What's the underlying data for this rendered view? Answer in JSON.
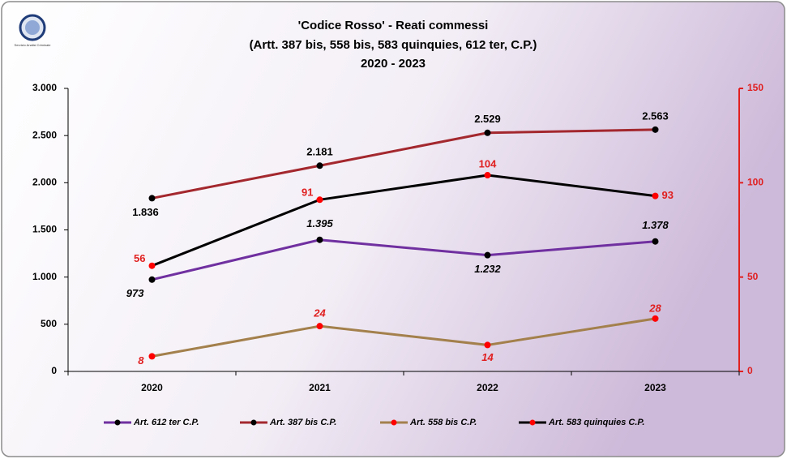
{
  "chart_data": {
    "type": "line",
    "title": "'Codice Rosso' - Reati commessi",
    "subtitle": [
      "(Artt. 387 bis, 558 bis, 583 quinquies, 612 ter, C.P.)",
      "2020 - 2023"
    ],
    "logo_text": "Servizio Analisi Criminale",
    "categories": [
      "2020",
      "2021",
      "2022",
      "2023"
    ],
    "ylim": [
      0,
      3000
    ],
    "yticks": [
      0,
      500,
      {
        "value": 1000,
        "label": "1.000"
      },
      {
        "value": 1500,
        "label": "1.500"
      },
      {
        "value": 2000,
        "label": "2.000"
      },
      {
        "value": 2500,
        "label": "2.500"
      },
      {
        "value": 3000,
        "label": "3.000"
      }
    ],
    "y2lim": [
      0,
      150
    ],
    "y2ticks": [
      0,
      50,
      100,
      150
    ],
    "y2_color": "#e02020",
    "series": [
      {
        "name": "Art. 612 ter C.P.",
        "color": "#7030a0",
        "marker_color": "#000000",
        "label_color": "#000000",
        "label_italic": true,
        "values": [
          973,
          1395,
          1232,
          1378
        ],
        "value_labels": [
          "973",
          "1.395",
          "1.232",
          "1.378"
        ]
      },
      {
        "name": "Art. 387 bis C.P.",
        "color": "#a3282e",
        "marker_color": "#000000",
        "label_color": "#000000",
        "label_italic": false,
        "values": [
          1836,
          2181,
          2529,
          2563
        ],
        "value_labels": [
          "1.836",
          "2.181",
          "2.529",
          "2.563"
        ]
      },
      {
        "name": "Art. 558 bis C.P.",
        "color": "#a3804c",
        "marker_color": "#ff0000",
        "label_color": "#e02020",
        "label_italic": true,
        "axis": "y2",
        "values": [
          8,
          24,
          14,
          28
        ]
      },
      {
        "name": "Art. 583 quinquies C.P.",
        "color": "#000000",
        "marker_color": "#ff0000",
        "label_color": "#e02020",
        "label_italic": false,
        "axis": "y2",
        "values": [
          56,
          91,
          104,
          93
        ]
      }
    ]
  }
}
